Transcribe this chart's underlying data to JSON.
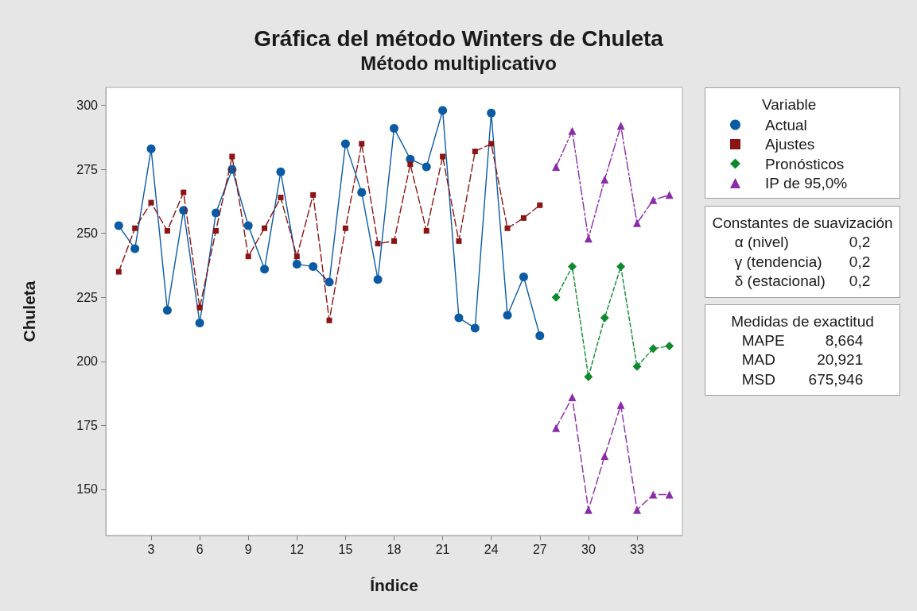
{
  "chart_data": {
    "type": "line",
    "title": "Gráfica del método Winters de Chuleta",
    "subtitle": "Método multiplicativo",
    "xlabel": "Índice",
    "ylabel": "Chuleta",
    "legend_title": "Variable",
    "legend": "top right",
    "xlim": [
      0.2,
      35.8
    ],
    "xticks": [
      3,
      6,
      9,
      12,
      15,
      18,
      21,
      24,
      27,
      30,
      33
    ],
    "ylim": [
      132,
      307
    ],
    "yticks": [
      150,
      175,
      200,
      225,
      250,
      275,
      300
    ],
    "series": [
      {
        "name": "Actual",
        "color": "#0b5ba4",
        "marker": "circle",
        "line_style": "solid",
        "x": [
          1,
          2,
          3,
          4,
          5,
          6,
          7,
          8,
          9,
          10,
          11,
          12,
          13,
          14,
          15,
          16,
          17,
          18,
          19,
          20,
          21,
          22,
          23,
          24,
          25,
          26,
          27
        ],
        "values": [
          253,
          244,
          283,
          220,
          259,
          215,
          258,
          275,
          253,
          236,
          274,
          238,
          237,
          231,
          285,
          266,
          232,
          291,
          279,
          276,
          298,
          217,
          213,
          297,
          218,
          233,
          210
        ]
      },
      {
        "name": "Ajustes",
        "color": "#8b1414",
        "marker": "square",
        "line_style": "dashed",
        "x": [
          1,
          2,
          3,
          4,
          5,
          6,
          7,
          8,
          9,
          10,
          11,
          12,
          13,
          14,
          15,
          16,
          17,
          18,
          19,
          20,
          21,
          22,
          23,
          24,
          25,
          26,
          27
        ],
        "values": [
          235,
          252,
          262,
          251,
          266,
          221,
          251,
          280,
          241,
          252,
          264,
          241,
          265,
          216,
          252,
          285,
          246,
          247,
          277,
          251,
          280,
          247,
          282,
          285,
          252,
          256,
          261
        ]
      },
      {
        "name": "Pronósticos",
        "color": "#0e8a2e",
        "marker": "diamond",
        "line_style": "dashed",
        "x": [
          28,
          29,
          30,
          31,
          32,
          33,
          34,
          35
        ],
        "values": [
          225,
          237,
          194,
          217,
          237,
          198,
          205,
          206
        ]
      },
      {
        "name": "IP de 95,0%",
        "color": "#8a2ca8",
        "marker": "triangle",
        "line_style": "dashed",
        "x": [
          28,
          29,
          30,
          31,
          32,
          33,
          34,
          35
        ],
        "values": [
          276,
          290,
          248,
          271,
          292,
          254,
          263,
          265
        ]
      },
      {
        "color": "#8a2ca8",
        "marker": "triangle",
        "line_style": "dashed",
        "x": [
          28,
          29,
          30,
          31,
          32,
          33,
          34,
          35
        ],
        "values": [
          174,
          186,
          142,
          163,
          183,
          142,
          148,
          148
        ]
      }
    ],
    "annotations": [
      "Constantes de suavización\nα (nivel) 0,2\nγ (tendencia) 0,2\nδ (estacional) 0,2",
      "Medidas de exactitud\nMAPE 8,664\nMAD 20,921\nMSD 675,946"
    ]
  }
}
